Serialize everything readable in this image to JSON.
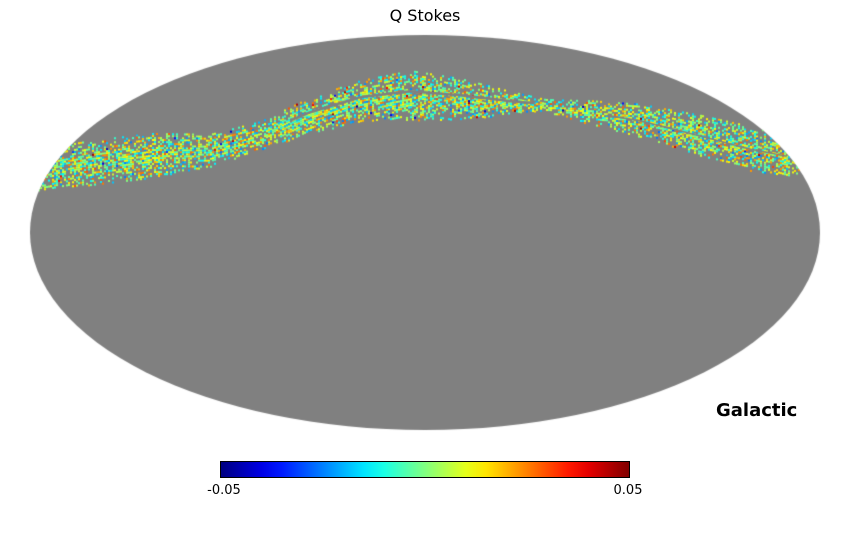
{
  "chart": {
    "title": "Q Stokes",
    "coordinate_label": "Galactic",
    "colorbar": {
      "min_label": "-0.05",
      "max_label": "0.05"
    }
  },
  "colors": {
    "background": "#ffffff",
    "unobserved_gray": "#808080",
    "text": "#000000"
  },
  "chart_data": {
    "type": "heatmap",
    "projection": "mollweide",
    "title": "Q Stokes",
    "coordinate_system": "Galactic",
    "colormap": "jet",
    "value_min": -0.05,
    "value_max": 0.05,
    "colorbar_tick_values": [
      -0.05,
      0.05
    ],
    "unobserved_color": "#808080",
    "observed_region": "single sinusoidal scan band sweeping across the upper half of the sky, pinching near longitude ~0.65 of map width",
    "value_character": "observed pixels concentrated near 0 (green) with yellow and cyan striations and sparse red and blue outliers",
    "scan_band_points": [
      [
        0.006,
        0.342,
        0.051
      ],
      [
        0.076,
        0.322,
        0.056
      ],
      [
        0.152,
        0.304,
        0.056
      ],
      [
        0.228,
        0.291,
        0.041
      ],
      [
        0.291,
        0.253,
        0.035
      ],
      [
        0.354,
        0.203,
        0.046
      ],
      [
        0.418,
        0.165,
        0.051
      ],
      [
        0.481,
        0.152,
        0.063
      ],
      [
        0.544,
        0.16,
        0.051
      ],
      [
        0.608,
        0.172,
        0.03
      ],
      [
        0.652,
        0.177,
        0.015
      ],
      [
        0.709,
        0.195,
        0.03
      ],
      [
        0.772,
        0.215,
        0.041
      ],
      [
        0.848,
        0.253,
        0.051
      ],
      [
        0.911,
        0.286,
        0.056
      ],
      [
        0.975,
        0.311,
        0.046
      ],
      [
        0.998,
        0.332,
        0.025
      ]
    ],
    "outlier_fraction": 0.035
  }
}
